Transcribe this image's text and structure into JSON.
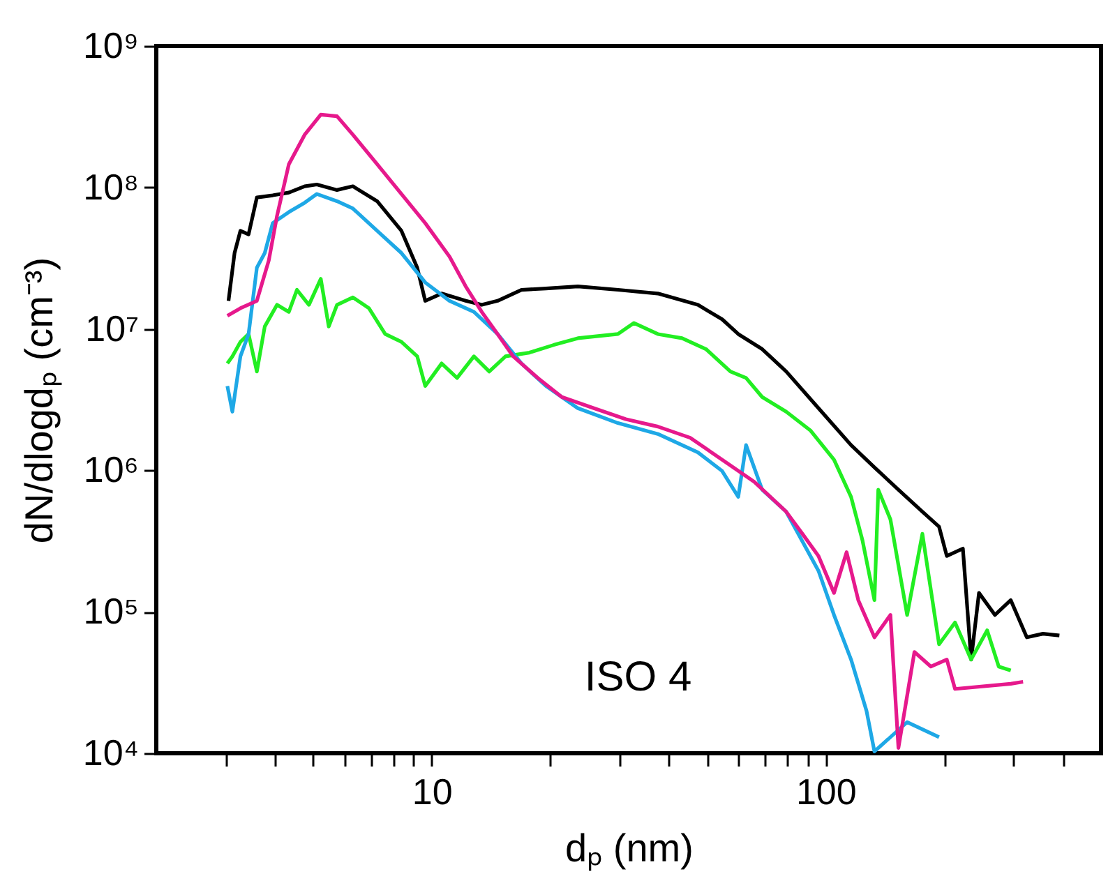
{
  "chart_data": {
    "type": "line",
    "xlabel": "dₚ (nm)",
    "ylabel": "dN/dlogdₚ (cm⁻³)",
    "log": "xy",
    "grid": false,
    "legend": false,
    "annotations": [
      "ISO 4"
    ],
    "xlim": [
      2,
      500
    ],
    "ylim": [
      10000,
      1000000000
    ],
    "xticks": [
      {
        "value": 3,
        "label": null
      },
      {
        "value": 4,
        "label": null
      },
      {
        "value": 5,
        "label": null
      },
      {
        "value": 6,
        "label": null
      },
      {
        "value": 7,
        "label": null
      },
      {
        "value": 8,
        "label": null
      },
      {
        "value": 9,
        "label": null
      },
      10,
      {
        "value": 20,
        "label": null
      },
      {
        "value": 30,
        "label": null
      },
      {
        "value": 40,
        "label": null
      },
      {
        "value": 50,
        "label": null
      },
      {
        "value": 60,
        "label": null
      },
      {
        "value": 70,
        "label": null
      },
      {
        "value": 80,
        "label": null
      },
      {
        "value": 90,
        "label": null
      },
      100,
      {
        "value": 200,
        "label": null
      },
      {
        "value": 300,
        "label": null
      },
      {
        "value": 400,
        "label": null
      }
    ],
    "yticks": [
      {
        "value": 10000,
        "label": "10⁴"
      },
      {
        "value": 100000,
        "label": "10⁵"
      },
      {
        "value": 1000000,
        "label": "10⁶"
      },
      {
        "value": 10000000,
        "label": "10⁷"
      },
      {
        "value": 100000000,
        "label": "10⁸"
      },
      {
        "value": 1000000000,
        "label": "10⁹"
      }
    ],
    "series": [
      {
        "color": "#000000",
        "x": [
          3.05,
          3.16,
          3.27,
          3.43,
          3.6,
          3.95,
          4.34,
          4.76,
          5.11,
          5.75,
          6.31,
          7.27,
          8.38,
          9.19,
          9.63,
          10.6,
          12.2,
          13.4,
          14.7,
          16.9,
          19.5,
          23.5,
          29.7,
          37.5,
          47.4,
          54.6,
          60,
          69,
          79.4,
          95.9,
          116,
          133,
          153,
          176,
          194,
          203,
          223,
          234,
          245,
          269,
          295,
          324,
          356,
          392
        ],
        "values": [
          15800000.0,
          34400000.0,
          49400000.0,
          46600000.0,
          85000000.0,
          88000000.0,
          92000000.0,
          102000000.0,
          105000000.0,
          96000000.0,
          102000000.0,
          80000000.0,
          49400000.0,
          27100000.0,
          15800000.0,
          17800000.0,
          15800000.0,
          14800000.0,
          15800000.0,
          18900000.0,
          19300000.0,
          20000000.0,
          18900000.0,
          17800000.0,
          14800000.0,
          11700000.0,
          9200000.0,
          7200000.0,
          5000000.0,
          2750000.0,
          1510000.0,
          1050000.0,
          730000.0,
          510000.0,
          400000.0,
          248000.0,
          280000.0,
          46000.0,
          136000.0,
          95000.0,
          121000.0,
          66000.0,
          70000.0,
          68000.0
        ]
      },
      {
        "color": "#22ee22",
        "x": [
          3.03,
          3.12,
          3.27,
          3.43,
          3.6,
          3.77,
          4.05,
          4.34,
          4.55,
          4.88,
          5.23,
          5.48,
          5.75,
          6.31,
          6.93,
          7.62,
          8.38,
          9.19,
          9.63,
          10.6,
          11.6,
          12.8,
          14.0,
          15.4,
          17.7,
          20.4,
          23.5,
          29.7,
          32.6,
          37.5,
          43.2,
          49.7,
          57.3,
          62.8,
          69,
          79.4,
          91.4,
          105,
          116,
          124,
          133,
          136,
          146,
          161,
          176,
          194,
          213,
          234,
          257,
          275,
          295
        ],
        "values": [
          5700000.0,
          6400000.0,
          8100000.0,
          9200000.0,
          5000000.0,
          10400000.0,
          14800000.0,
          13200000.0,
          18900000.0,
          14800000.0,
          22600000.0,
          10400000.0,
          14800000.0,
          16700000.0,
          14000000.0,
          9200000.0,
          8100000.0,
          6400000.0,
          3950000.0,
          5700000.0,
          4500000.0,
          6400000.0,
          5000000.0,
          6400000.0,
          6800000.0,
          7700000.0,
          8600000.0,
          9200000.0,
          11000000.0,
          9200000.0,
          8600000.0,
          7200000.0,
          5000000.0,
          4500000.0,
          3300000.0,
          2600000.0,
          1920000.0,
          1190000.0,
          650000.0,
          320000.0,
          121000.0,
          730000.0,
          450000.0,
          95000.0,
          356000.0,
          59000.0,
          84000.0,
          46000.0,
          74000.0,
          41000.0,
          38500.0
        ]
      },
      {
        "color": "#1ea8e6",
        "x": [
          3.03,
          3.12,
          3.27,
          3.43,
          3.6,
          3.77,
          3.95,
          4.34,
          4.76,
          5.11,
          5.75,
          6.31,
          7.27,
          8.38,
          9.63,
          11.1,
          12.8,
          14.7,
          16.9,
          19.5,
          23.5,
          29.7,
          37.5,
          47.4,
          54.6,
          60,
          62.8,
          69,
          79.4,
          95.9,
          105,
          116,
          127,
          133,
          161,
          194
        ],
        "values": [
          3950000.0,
          2600000.0,
          6400000.0,
          9200000.0,
          27100000.0,
          34400000.0,
          56000000.0,
          67000000.0,
          78000000.0,
          90000000.0,
          80000000.0,
          71000000.0,
          49400000.0,
          34400000.0,
          21300000.0,
          15800000.0,
          13200000.0,
          9200000.0,
          5700000.0,
          3950000.0,
          2750000.0,
          2160000.0,
          1810000.0,
          1340000.0,
          990000.0,
          650000.0,
          1510000.0,
          730000.0,
          510000.0,
          195000.0,
          95000.0,
          46000.0,
          19900.0,
          10300.0,
          16600.0,
          13000.0
        ]
      },
      {
        "color": "#e6198c",
        "x": [
          3.03,
          3.27,
          3.6,
          3.86,
          4.05,
          4.34,
          4.76,
          5.23,
          5.75,
          6.31,
          7.27,
          8.38,
          9.63,
          11.1,
          12.2,
          13.4,
          14.7,
          16.1,
          18.6,
          21.4,
          25.8,
          31.1,
          37.5,
          45.3,
          54.6,
          65.9,
          79.4,
          87.3,
          95.9,
          105,
          113,
          121,
          133,
          146,
          153,
          168,
          185,
          203,
          213,
          295,
          317
        ],
        "values": [
          12400000.0,
          14000000.0,
          15800000.0,
          30500000.0,
          63000000.0,
          146000000.0,
          236000000.0,
          327000000.0,
          319000000.0,
          236000000.0,
          146000000.0,
          90000000.0,
          56000000.0,
          32400000.0,
          20000000.0,
          13200000.0,
          9200000.0,
          6400000.0,
          4500000.0,
          3300000.0,
          2750000.0,
          2300000.0,
          2040000.0,
          1700000.0,
          1190000.0,
          830000.0,
          510000.0,
          356000.0,
          248000.0,
          136000.0,
          264000.0,
          121000.0,
          66000.0,
          95000.0,
          10900.0,
          52000.0,
          41000.0,
          46000.0,
          28500.0,
          31000.0,
          32000.0
        ]
      }
    ]
  }
}
